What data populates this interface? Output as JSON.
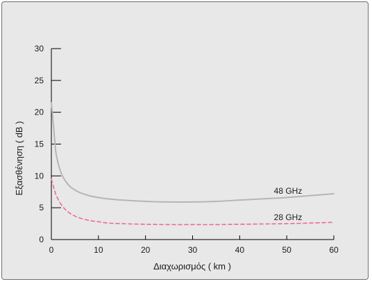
{
  "chart_data": {
    "type": "line",
    "title": "",
    "xlabel": "Διαχωρισμός ( km )",
    "ylabel": "Εξασθένηση ( dB )",
    "xlim": [
      0,
      60
    ],
    "ylim": [
      0,
      30
    ],
    "xticks": [
      0,
      10,
      20,
      30,
      40,
      50,
      60
    ],
    "yticks": [
      0,
      5,
      10,
      15,
      20,
      25,
      30
    ],
    "grid": false,
    "colors": {
      "48GHz": "#b5b5b5",
      "28GHz": "#f06a8c",
      "axis": "#000000",
      "background": "#e8e8e8"
    },
    "series": [
      {
        "name": "48 GHz",
        "style": "solid",
        "x": [
          0,
          0.5,
          1,
          2,
          3,
          4,
          5,
          6,
          8,
          10,
          12,
          15,
          20,
          25,
          30,
          35,
          40,
          45,
          50,
          55,
          60
        ],
        "y": [
          21.5,
          17.5,
          13.5,
          10.6,
          9.2,
          8.3,
          7.8,
          7.4,
          6.9,
          6.6,
          6.4,
          6.2,
          6.0,
          5.9,
          5.9,
          6.0,
          6.2,
          6.4,
          6.6,
          6.9,
          7.2
        ]
      },
      {
        "name": "28 GHz",
        "style": "dashed",
        "x": [
          0,
          0.5,
          1,
          2,
          3,
          4,
          5,
          6,
          8,
          10,
          12,
          15,
          20,
          25,
          30,
          35,
          40,
          45,
          50,
          55,
          60
        ],
        "y": [
          9.5,
          8.2,
          7.0,
          5.6,
          4.7,
          4.1,
          3.7,
          3.4,
          3.0,
          2.8,
          2.6,
          2.5,
          2.4,
          2.35,
          2.35,
          2.35,
          2.4,
          2.45,
          2.5,
          2.6,
          2.7
        ]
      }
    ]
  }
}
